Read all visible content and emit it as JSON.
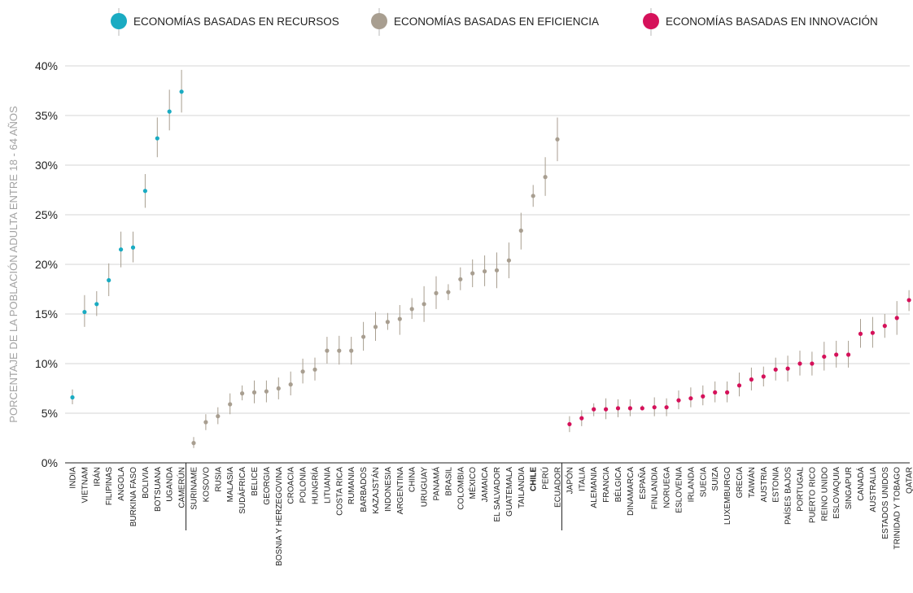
{
  "colors": {
    "resources": "#1aabc2",
    "efficiency": "#a89e90",
    "innovation": "#d5115a",
    "gridline": "#d6d6d6",
    "errorbar": "#a89e90",
    "axis": "#222222",
    "highlight_label": "#a89e90"
  },
  "chart_data": {
    "type": "scatter",
    "ylabel": "PORCENTAJE DE LA POBLACIÓN ADULTA ENTRE 18 - 64 AÑOS",
    "xlabel": "",
    "ylim": [
      0,
      40
    ],
    "yticks": [
      0,
      5,
      10,
      15,
      20,
      25,
      30,
      35,
      40
    ],
    "ytick_labels": [
      "0%",
      "5%",
      "10%",
      "15%",
      "20%",
      "25%",
      "30%",
      "35%",
      "40%"
    ],
    "grid": true,
    "legend_position": "top",
    "highlight": "CHILE",
    "groups": [
      {
        "key": "resources",
        "name": "ECONOMÍAS BASADAS EN RECURSOS"
      },
      {
        "key": "efficiency",
        "name": "ECONOMÍAS BASADAS EN EFICIENCIA"
      },
      {
        "key": "innovation",
        "name": "ECONOMÍAS BASADAS EN INNOVACIÓN"
      }
    ],
    "points": [
      {
        "country": "INDIA",
        "group": "resources",
        "value": 6.6,
        "low": 5.9,
        "high": 7.4
      },
      {
        "country": "VIETNAM",
        "group": "resources",
        "value": 15.2,
        "low": 13.7,
        "high": 16.9
      },
      {
        "country": "IRÁN",
        "group": "resources",
        "value": 16.0,
        "low": 14.8,
        "high": 17.3
      },
      {
        "country": "FILIPINAS",
        "group": "resources",
        "value": 18.4,
        "low": 16.8,
        "high": 20.1
      },
      {
        "country": "ANGOLA",
        "group": "resources",
        "value": 21.5,
        "low": 19.7,
        "high": 23.3
      },
      {
        "country": "BURKINA FASO",
        "group": "resources",
        "value": 21.7,
        "low": 20.2,
        "high": 23.3
      },
      {
        "country": "BOLIVIA",
        "group": "resources",
        "value": 27.4,
        "low": 25.7,
        "high": 29.1
      },
      {
        "country": "BOTSUANA",
        "group": "resources",
        "value": 32.7,
        "low": 30.8,
        "high": 34.8
      },
      {
        "country": "UGANDA",
        "group": "resources",
        "value": 35.4,
        "low": 33.5,
        "high": 37.6
      },
      {
        "country": "CAMERÚN",
        "group": "resources",
        "value": 37.4,
        "low": 35.3,
        "high": 39.6
      },
      {
        "country": "SURINAME",
        "group": "efficiency",
        "value": 2.0,
        "low": 1.5,
        "high": 2.6
      },
      {
        "country": "KOSOVO",
        "group": "efficiency",
        "value": 4.1,
        "low": 3.3,
        "high": 4.9
      },
      {
        "country": "RUSIA",
        "group": "efficiency",
        "value": 4.7,
        "low": 3.9,
        "high": 5.6
      },
      {
        "country": "MALASIA",
        "group": "efficiency",
        "value": 5.9,
        "low": 4.9,
        "high": 7.0
      },
      {
        "country": "SUDÁFRICA",
        "group": "efficiency",
        "value": 7.0,
        "low": 6.3,
        "high": 7.8
      },
      {
        "country": "BELICE",
        "group": "efficiency",
        "value": 7.1,
        "low": 6.0,
        "high": 8.3
      },
      {
        "country": "GEORGIA",
        "group": "efficiency",
        "value": 7.2,
        "low": 6.1,
        "high": 8.3
      },
      {
        "country": "BOSNIA Y HERZEGOVINA",
        "group": "efficiency",
        "value": 7.5,
        "low": 6.4,
        "high": 8.6
      },
      {
        "country": "CROACIA",
        "group": "efficiency",
        "value": 7.9,
        "low": 6.8,
        "high": 9.2
      },
      {
        "country": "POLONIA",
        "group": "efficiency",
        "value": 9.2,
        "low": 8.0,
        "high": 10.5
      },
      {
        "country": "HUNGRÍA",
        "group": "efficiency",
        "value": 9.4,
        "low": 8.3,
        "high": 10.6
      },
      {
        "country": "LITUANIA",
        "group": "efficiency",
        "value": 11.3,
        "low": 10.0,
        "high": 12.7
      },
      {
        "country": "COSTA RICA",
        "group": "efficiency",
        "value": 11.3,
        "low": 9.9,
        "high": 12.8
      },
      {
        "country": "RUMANIA",
        "group": "efficiency",
        "value": 11.3,
        "low": 9.9,
        "high": 12.7
      },
      {
        "country": "BARBADOS",
        "group": "efficiency",
        "value": 12.7,
        "low": 11.3,
        "high": 14.2
      },
      {
        "country": "KAZAJSTÁN",
        "group": "efficiency",
        "value": 13.7,
        "low": 12.3,
        "high": 15.2
      },
      {
        "country": "INDONESIA",
        "group": "efficiency",
        "value": 14.2,
        "low": 13.4,
        "high": 15.1
      },
      {
        "country": "ARGENTINA",
        "group": "efficiency",
        "value": 14.5,
        "low": 12.9,
        "high": 15.9
      },
      {
        "country": "CHINA",
        "group": "efficiency",
        "value": 15.5,
        "low": 14.5,
        "high": 16.6
      },
      {
        "country": "URUGUAY",
        "group": "efficiency",
        "value": 16.0,
        "low": 14.2,
        "high": 17.8
      },
      {
        "country": "PANAMÁ",
        "group": "efficiency",
        "value": 17.1,
        "low": 15.5,
        "high": 18.8
      },
      {
        "country": "BRASIL",
        "group": "efficiency",
        "value": 17.2,
        "low": 16.4,
        "high": 18.0
      },
      {
        "country": "COLOMBIA",
        "group": "efficiency",
        "value": 18.5,
        "low": 17.4,
        "high": 19.7
      },
      {
        "country": "MÉXICO",
        "group": "efficiency",
        "value": 19.1,
        "low": 17.7,
        "high": 20.5
      },
      {
        "country": "JAMAICA",
        "group": "efficiency",
        "value": 19.3,
        "low": 17.8,
        "high": 20.9
      },
      {
        "country": "EL SALVADOR",
        "group": "efficiency",
        "value": 19.4,
        "low": 17.6,
        "high": 21.2
      },
      {
        "country": "GUATEMALA",
        "group": "efficiency",
        "value": 20.4,
        "low": 18.6,
        "high": 22.2
      },
      {
        "country": "TAILANDIA",
        "group": "efficiency",
        "value": 23.4,
        "low": 21.5,
        "high": 25.2
      },
      {
        "country": "CHILE",
        "group": "efficiency",
        "value": 26.9,
        "low": 25.8,
        "high": 28.0
      },
      {
        "country": "PERÚ",
        "group": "efficiency",
        "value": 28.8,
        "low": 26.9,
        "high": 30.8
      },
      {
        "country": "ECUADOR",
        "group": "efficiency",
        "value": 32.6,
        "low": 30.4,
        "high": 34.8
      },
      {
        "country": "JAPÓN",
        "group": "innovation",
        "value": 3.9,
        "low": 3.1,
        "high": 4.7
      },
      {
        "country": "ITALIA",
        "group": "innovation",
        "value": 4.5,
        "low": 3.7,
        "high": 5.3
      },
      {
        "country": "ALEMANIA",
        "group": "innovation",
        "value": 5.4,
        "low": 4.7,
        "high": 6.0
      },
      {
        "country": "FRANCIA",
        "group": "innovation",
        "value": 5.4,
        "low": 4.4,
        "high": 6.5
      },
      {
        "country": "BÉLGICA",
        "group": "innovation",
        "value": 5.5,
        "low": 4.6,
        "high": 6.4
      },
      {
        "country": "DINAMARCA",
        "group": "innovation",
        "value": 5.5,
        "low": 4.7,
        "high": 6.4
      },
      {
        "country": "ESPAÑA",
        "group": "innovation",
        "value": 5.5,
        "low": 5.3,
        "high": 5.8
      },
      {
        "country": "FINLANDIA",
        "group": "innovation",
        "value": 5.6,
        "low": 4.7,
        "high": 6.6
      },
      {
        "country": "NORUEGA",
        "group": "innovation",
        "value": 5.6,
        "low": 4.7,
        "high": 6.5
      },
      {
        "country": "ESLOVENIA",
        "group": "innovation",
        "value": 6.3,
        "low": 5.4,
        "high": 7.3
      },
      {
        "country": "IRLANDA",
        "group": "innovation",
        "value": 6.5,
        "low": 5.6,
        "high": 7.6
      },
      {
        "country": "SUECIA",
        "group": "innovation",
        "value": 6.7,
        "low": 5.8,
        "high": 7.8
      },
      {
        "country": "SUIZA",
        "group": "innovation",
        "value": 7.1,
        "low": 6.1,
        "high": 8.2
      },
      {
        "country": "LUXEMBURGO",
        "group": "innovation",
        "value": 7.1,
        "low": 6.1,
        "high": 8.2
      },
      {
        "country": "GRECIA",
        "group": "innovation",
        "value": 7.8,
        "low": 6.7,
        "high": 9.1
      },
      {
        "country": "TAIWÁN",
        "group": "innovation",
        "value": 8.4,
        "low": 7.3,
        "high": 9.6
      },
      {
        "country": "AUSTRIA",
        "group": "innovation",
        "value": 8.7,
        "low": 7.7,
        "high": 9.7
      },
      {
        "country": "ESTONIA",
        "group": "innovation",
        "value": 9.4,
        "low": 8.3,
        "high": 10.6
      },
      {
        "country": "PAÍSES BAJOS",
        "group": "innovation",
        "value": 9.5,
        "low": 8.2,
        "high": 10.8
      },
      {
        "country": "PORTUGAL",
        "group": "innovation",
        "value": 10.0,
        "low": 8.8,
        "high": 11.3
      },
      {
        "country": "PUERTO RICO",
        "group": "innovation",
        "value": 10.0,
        "low": 8.8,
        "high": 11.2
      },
      {
        "country": "REINO UNIDO",
        "group": "innovation",
        "value": 10.7,
        "low": 9.3,
        "high": 12.2
      },
      {
        "country": "ESLOVAQUIA",
        "group": "innovation",
        "value": 10.9,
        "low": 9.6,
        "high": 12.3
      },
      {
        "country": "SINGAPUR",
        "group": "innovation",
        "value": 10.9,
        "low": 9.6,
        "high": 12.3
      },
      {
        "country": "CANADÁ",
        "group": "innovation",
        "value": 13.0,
        "low": 11.6,
        "high": 14.5
      },
      {
        "country": "AUSTRALIA",
        "group": "innovation",
        "value": 13.1,
        "low": 11.6,
        "high": 14.7
      },
      {
        "country": "ESTADOS UNIDOS",
        "group": "innovation",
        "value": 13.8,
        "low": 12.6,
        "high": 15.0
      },
      {
        "country": "TRINIDAD Y TOBAGO",
        "group": "innovation",
        "value": 14.6,
        "low": 12.9,
        "high": 16.3
      },
      {
        "country": "QATAR",
        "group": "innovation",
        "value": 16.4,
        "low": 15.3,
        "high": 17.4
      }
    ]
  }
}
